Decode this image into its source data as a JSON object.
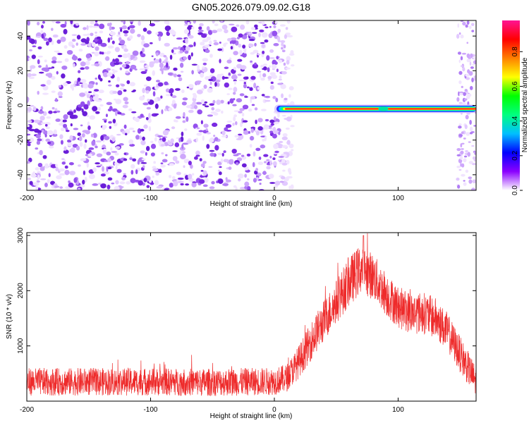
{
  "title": "GN05.2026.079.09.02.G18",
  "colors": {
    "snr_line": "#ee2b2b",
    "spectro_bg_blob": "#8b2be8",
    "ridge_core": "#e8122a",
    "axis": "#000000"
  },
  "chart_data": [
    {
      "type": "heatmap",
      "name": "spectrogram",
      "xlabel": "Height of straight line (km)",
      "ylabel": "Frequency (Hz)",
      "xlim": [
        -200,
        163
      ],
      "ylim": [
        -49,
        49
      ],
      "xticks": [
        -200,
        -100,
        0,
        100
      ],
      "yticks": [
        -40,
        -20,
        0,
        20,
        40
      ],
      "grid": false,
      "ridge": {
        "x_start": 0,
        "x_end": 163,
        "frequency": -2,
        "peak_amplitude": 1.0,
        "notch_x": 88
      },
      "noise_region": {
        "x_start": -200,
        "x_end": 8,
        "mean_amplitude": 0.1
      },
      "colorbar": {
        "label": "Normalized spectral amplitude",
        "range": [
          0,
          0.98
        ],
        "ticks": [
          "0.0",
          "0.2",
          "0.4",
          "0.6",
          "0.8"
        ],
        "colors": [
          "#ffffff",
          "#8b00ff",
          "#0000ff",
          "#00bfff",
          "#00ff80",
          "#00ff00",
          "#ffff00",
          "#ff8000",
          "#ff0000",
          "#ff1493"
        ]
      }
    },
    {
      "type": "line",
      "name": "snr",
      "xlabel": "Height of straight line (km)",
      "ylabel": "SNR (10 * v/v)",
      "xlim": [
        -200,
        163
      ],
      "ylim": [
        0,
        3050
      ],
      "xticks": [
        -200,
        -100,
        0,
        100
      ],
      "yticks": [
        1000,
        2000,
        3000
      ],
      "grid": false,
      "series": [
        {
          "name": "SNR",
          "x": [
            -200,
            -150,
            -100,
            -50,
            0,
            10,
            20,
            30,
            40,
            50,
            60,
            70,
            80,
            90,
            100,
            110,
            120,
            130,
            140,
            150,
            163
          ],
          "baseline": [
            350,
            350,
            350,
            340,
            360,
            420,
            720,
            1100,
            1450,
            1800,
            2150,
            2400,
            2250,
            1950,
            1700,
            1600,
            1600,
            1500,
            1250,
            850,
            350
          ],
          "spread": [
            250,
            250,
            250,
            250,
            250,
            250,
            300,
            350,
            380,
            400,
            450,
            450,
            420,
            400,
            380,
            380,
            380,
            380,
            350,
            330,
            280
          ],
          "peak": {
            "x": 72,
            "value": 3000
          }
        }
      ]
    }
  ]
}
